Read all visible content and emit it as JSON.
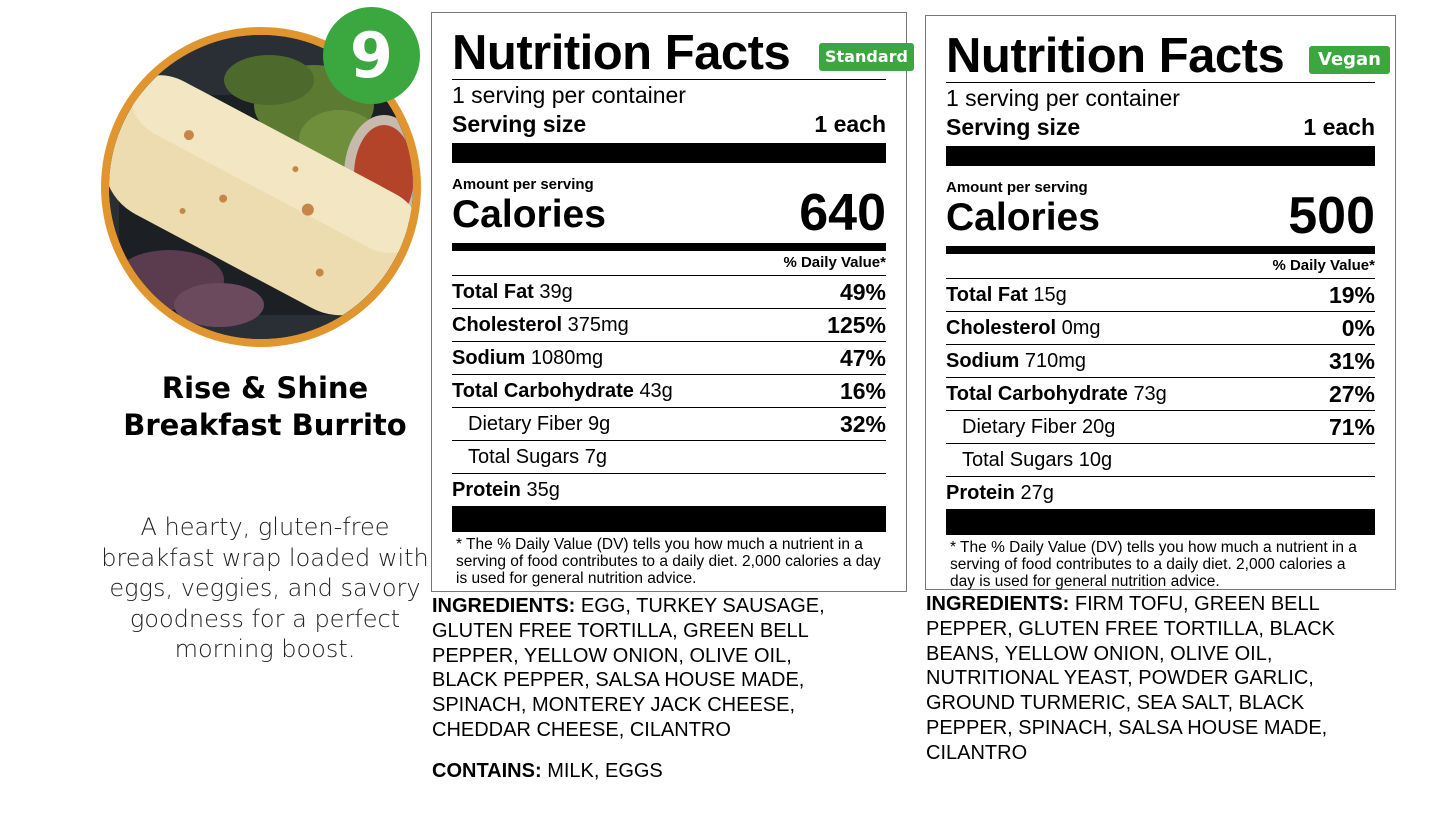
{
  "product": {
    "number": "9",
    "title_line1": "Rise & Shine",
    "title_line2": "Breakfast Burrito",
    "description": "A hearty, gluten-free breakfast wrap loaded with eggs, veggies, and savory goodness for a perfect morning boost."
  },
  "colors": {
    "accent_green": "#3aa83f",
    "photo_ring": "#e1952f"
  },
  "labels": [
    {
      "id": "standard",
      "title": "Nutrition Facts",
      "tag": "Standard",
      "servings_per_container": "1 serving per container",
      "serving_size_label": "Serving size",
      "serving_size_value": "1 each",
      "amount_per_serving": "Amount per serving",
      "calories_label": "Calories",
      "calories": "640",
      "daily_value_header": "% Daily Value*",
      "rows": [
        {
          "name": "Total Fat",
          "amount": "39g",
          "dv": "49%"
        },
        {
          "name": "Cholesterol",
          "amount": "375mg",
          "dv": "125%"
        },
        {
          "name": "Sodium",
          "amount": "1080mg",
          "dv": "47%"
        },
        {
          "name": "Total Carbohydrate",
          "amount": "43g",
          "dv": "16%"
        },
        {
          "name": "Dietary Fiber 9g",
          "amount": "",
          "dv": "32%"
        },
        {
          "name": "Total Sugars 7g",
          "amount": "",
          "dv": ""
        },
        {
          "name": "Protein",
          "amount": "35g",
          "dv": ""
        }
      ],
      "footnote": "* The % Daily Value (DV) tells you how much a nutrient in a serving of food contributes to a daily diet. 2,000 calories a day is used for general nutrition advice.",
      "ingredients_label": "INGREDIENTS:",
      "ingredients": "EGG, TURKEY SAUSAGE, GLUTEN FREE TORTILLA, GREEN BELL PEPPER, YELLOW ONION, OLIVE OIL, BLACK PEPPER, SALSA HOUSE MADE, SPINACH, MONTEREY JACK CHEESE, CHEDDAR CHEESE, CILANTRO",
      "contains_label": "CONTAINS:",
      "contains": "MILK, EGGS"
    },
    {
      "id": "vegan",
      "title": "Nutrition Facts",
      "tag": "Vegan",
      "servings_per_container": "1 serving per container",
      "serving_size_label": "Serving size",
      "serving_size_value": "1 each",
      "amount_per_serving": "Amount per serving",
      "calories_label": "Calories",
      "calories": "500",
      "daily_value_header": "% Daily Value*",
      "rows": [
        {
          "name": "Total Fat",
          "amount": "15g",
          "dv": "19%"
        },
        {
          "name": "Cholesterol",
          "amount": "0mg",
          "dv": "0%"
        },
        {
          "name": "Sodium",
          "amount": "710mg",
          "dv": "31%"
        },
        {
          "name": "Total Carbohydrate",
          "amount": "73g",
          "dv": "27%"
        },
        {
          "name": "Dietary Fiber 20g",
          "amount": "",
          "dv": "71%"
        },
        {
          "name": "Total Sugars 10g",
          "amount": "",
          "dv": ""
        },
        {
          "name": "Protein",
          "amount": "27g",
          "dv": ""
        }
      ],
      "footnote": "* The % Daily Value (DV) tells you how much a nutrient in a serving of food contributes to a daily diet. 2,000 calories a day is used for general nutrition advice.",
      "ingredients_label": "INGREDIENTS:",
      "ingredients": "FIRM TOFU, GREEN BELL PEPPER, GLUTEN FREE TORTILLA, BLACK BEANS, YELLOW ONION, OLIVE OIL, NUTRITIONAL YEAST, POWDER GARLIC, GROUND TURMERIC, SEA SALT, BLACK PEPPER, SPINACH, SALSA HOUSE MADE, CILANTRO"
    }
  ]
}
